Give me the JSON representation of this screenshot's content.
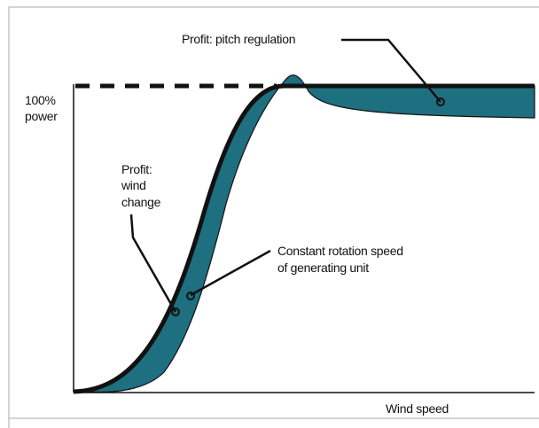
{
  "y_axis_label": [
    "100%",
    "power"
  ],
  "x_axis_label": "Wind speed",
  "annotations": [
    {
      "lines": [
        "Profit: pitch regulation"
      ]
    },
    {
      "lines": [
        "Profit:",
        "wind",
        "change"
      ]
    },
    {
      "lines": [
        "Constant rotation speed",
        "of generating unit"
      ]
    }
  ]
}
